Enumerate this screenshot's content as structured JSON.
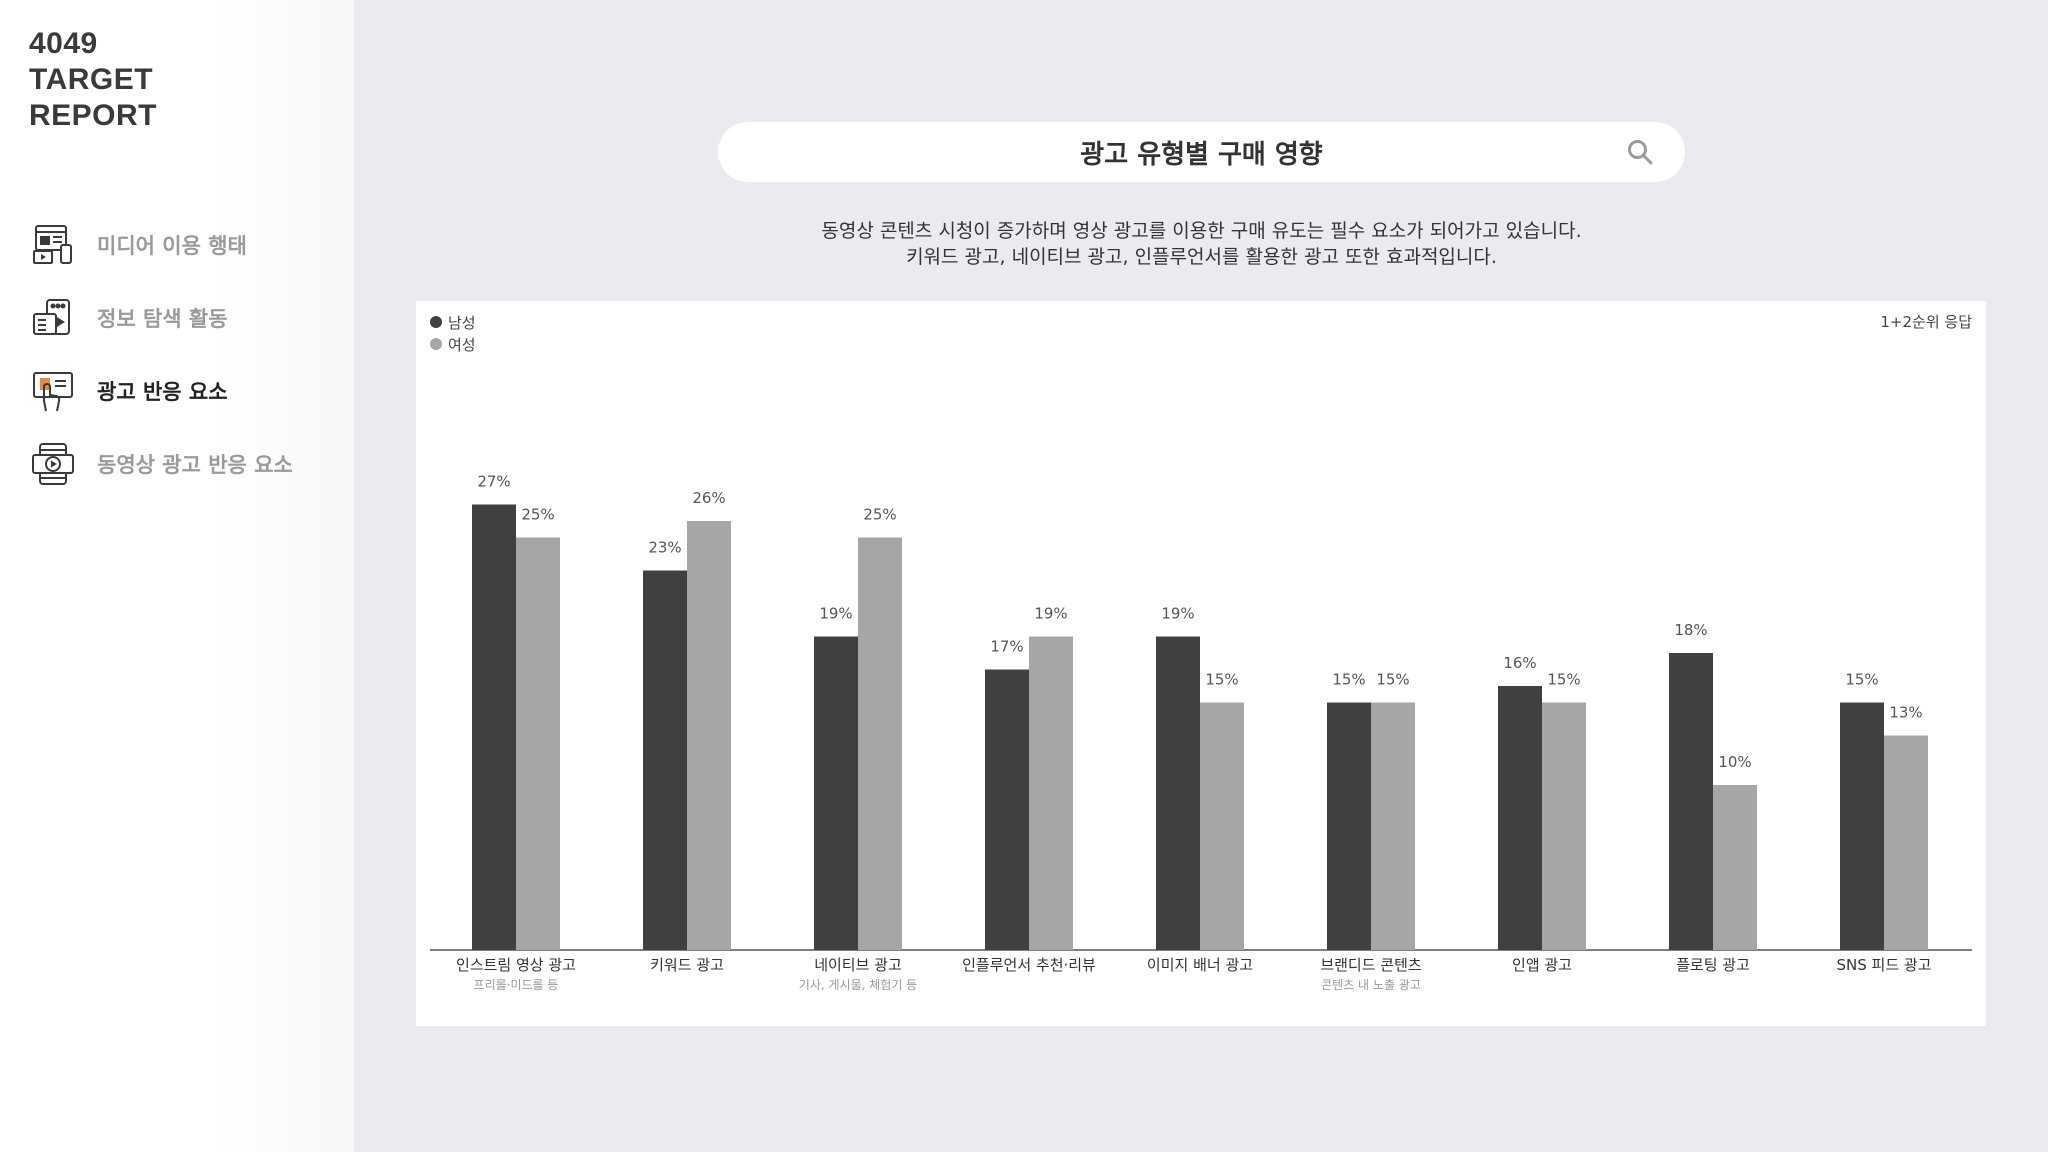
{
  "logo": {
    "line1": "4049",
    "line2": "TARGET",
    "line3": "REPORT"
  },
  "sidebar": {
    "items": [
      {
        "label": "미디어 이용 행태",
        "icon": "media-devices-icon",
        "active": false
      },
      {
        "label": "정보 탐색 활동",
        "icon": "info-search-icon",
        "active": false
      },
      {
        "label": "광고 반응 요소",
        "icon": "ad-touch-icon",
        "active": true
      },
      {
        "label": "동영상 광고 반응 요소",
        "icon": "video-play-icon",
        "active": false
      }
    ]
  },
  "search": {
    "title": "광고 유형별 구매 영향",
    "icon": "search-icon"
  },
  "description": {
    "line1": "동영상 콘텐츠 시청이 증가하며 영상 광고를 이용한 구매 유도는 필수 요소가 되어가고 있습니다.",
    "line2": "키워드 광고, 네이티브 광고, 인플루언서를 활용한 광고 또한 효과적입니다."
  },
  "chart_note": "1+2순위 응답",
  "colors": {
    "male": "#404040",
    "female": "#a6a6a6",
    "background": "#ebeaf0"
  },
  "chart_data": {
    "type": "bar",
    "categories": [
      "인스트림 영상 광고",
      "키워드 광고",
      "네이티브 광고",
      "인플루언서 추천·리뷰",
      "이미지 배너 광고",
      "브랜디드 콘텐츠",
      "인앱 광고",
      "플로팅 광고",
      "SNS 피드 광고"
    ],
    "category_sublabels": [
      "프리롤·미드롤 등",
      "",
      "기사, 게시물, 체험기 등",
      "",
      "",
      "콘텐츠 내 노출 광고",
      "",
      "",
      ""
    ],
    "series": [
      {
        "name": "남성",
        "values": [
          27,
          23,
          19,
          17,
          19,
          15,
          16,
          18,
          15
        ],
        "labels": [
          "27%",
          "23%",
          "19%",
          "17%",
          "19%",
          "15%",
          "16%",
          "18%",
          "15%"
        ]
      },
      {
        "name": "여성",
        "values": [
          25,
          26,
          25,
          19,
          15,
          15,
          15,
          10,
          13
        ],
        "labels": [
          "25%",
          "26%",
          "25%",
          "19%",
          "15%",
          "15%",
          "15%",
          "10%",
          "13%"
        ]
      }
    ],
    "legend_position": "top-left",
    "grid": false
  }
}
